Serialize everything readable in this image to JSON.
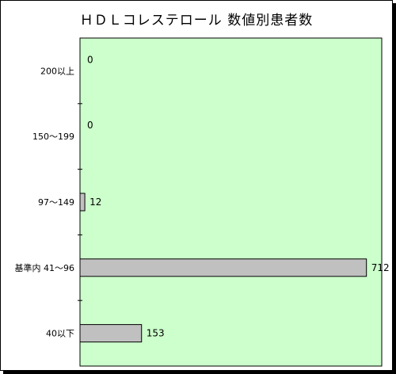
{
  "chart_data": {
    "type": "bar",
    "orientation": "horizontal",
    "title": "ＨＤＬコレステロール 数値別患者数",
    "categories": [
      "200以上",
      "150～199",
      "97～149",
      "基準内 41～96",
      "40以下"
    ],
    "values": [
      0,
      0,
      12,
      712,
      153
    ],
    "value_labels": [
      "0",
      "0",
      "12",
      "712",
      "153"
    ],
    "xlim": [
      0,
      750
    ],
    "grid": false,
    "legend": "none",
    "colors": {
      "plot_background": "#ccffcc",
      "bar_fill": "#c0c0c0",
      "bar_stroke": "#000000"
    }
  }
}
